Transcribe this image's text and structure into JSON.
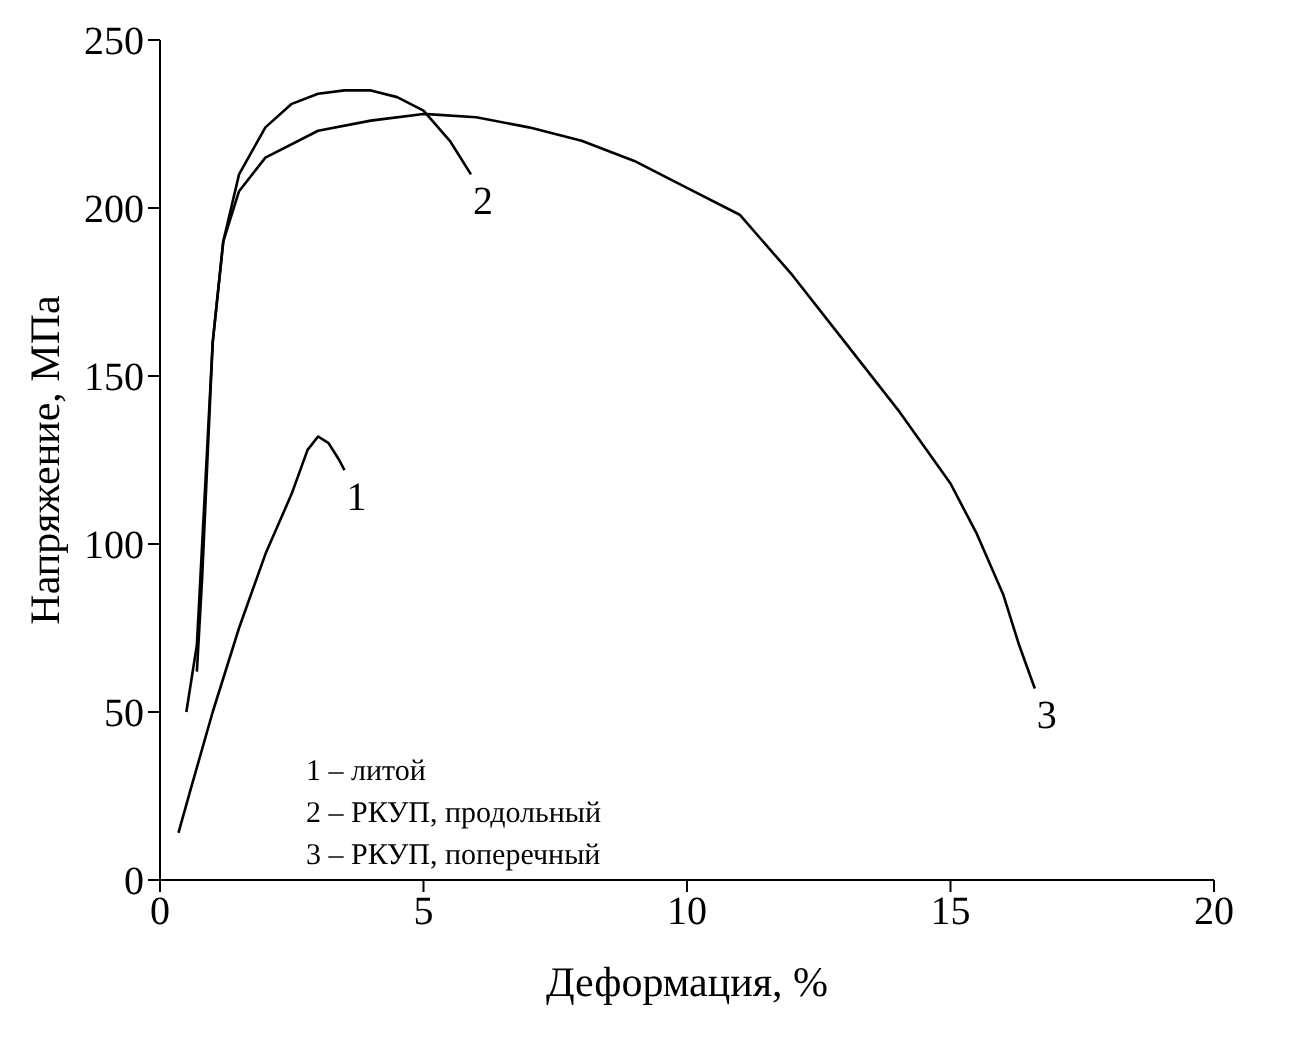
{
  "chart_data": {
    "type": "line",
    "xlabel": "Деформация, %",
    "ylabel": "Напряжение, МПа",
    "xlim": [
      0,
      20
    ],
    "xticks": [
      0,
      5,
      10,
      15,
      20
    ],
    "ylim": [
      0,
      250
    ],
    "yticks": [
      0,
      50,
      100,
      150,
      200,
      250
    ],
    "grid": false,
    "legend": false,
    "marker": "none",
    "line_style": "solid",
    "series": [
      {
        "color": "#000000",
        "x": [
          0.35,
          0.6,
          1,
          1.5,
          2,
          2.5,
          2.8,
          3.0,
          3.2,
          3.4,
          3.5
        ],
        "values": [
          14,
          28,
          50,
          75,
          97,
          115,
          128,
          132,
          130,
          125,
          122
        ]
      },
      {
        "color": "#000000",
        "x": [
          0.5,
          0.7,
          0.8,
          0.9,
          1.0,
          1.2,
          1.5,
          2,
          2.5,
          3,
          3.5,
          4,
          4.5,
          5,
          5.5,
          5.9
        ],
        "values": [
          50,
          70,
          100,
          130,
          160,
          190,
          210,
          224,
          231,
          234,
          235,
          235,
          233,
          229,
          220,
          210
        ]
      },
      {
        "color": "#000000",
        "x": [
          0.7,
          0.8,
          0.9,
          1.0,
          1.2,
          1.5,
          2,
          3,
          4,
          5,
          6,
          7,
          8,
          9,
          10,
          11,
          12,
          13,
          14,
          15,
          15.5,
          16,
          16.3,
          16.6
        ],
        "values": [
          62,
          90,
          125,
          160,
          190,
          205,
          215,
          223,
          226,
          228,
          227,
          224,
          220,
          214,
          206,
          198,
          180,
          160,
          140,
          118,
          103,
          85,
          70,
          57
        ]
      }
    ],
    "annotations": [
      {
        "text": "1",
        "x": 3.5,
        "y": 122
      },
      {
        "text": "2",
        "x": 5.9,
        "y": 210
      },
      {
        "text": "3",
        "x": 16.6,
        "y": 57
      },
      "1 – литой",
      "2 – РКУП, продольный",
      "3 – РКУП, поперечный"
    ]
  }
}
